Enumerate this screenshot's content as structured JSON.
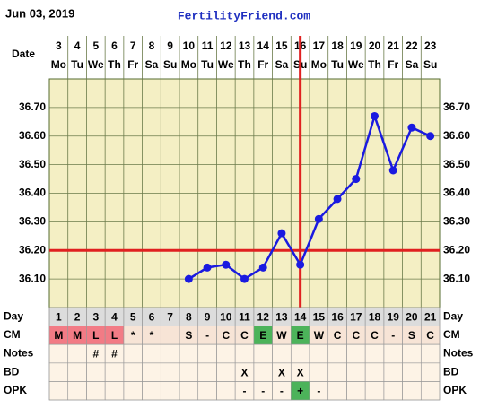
{
  "header": {
    "date": "Jun 03, 2019",
    "site": "FertilityFriend.com"
  },
  "chart_data": {
    "type": "line",
    "x_label": "Date",
    "categories": [
      "3",
      "4",
      "5",
      "6",
      "7",
      "8",
      "9",
      "10",
      "11",
      "12",
      "13",
      "14",
      "15",
      "16",
      "17",
      "18",
      "19",
      "20",
      "21",
      "22",
      "23"
    ],
    "weekdays": [
      "Mo",
      "Tu",
      "We",
      "Th",
      "Fr",
      "Sa",
      "Su",
      "Mo",
      "Tu",
      "We",
      "Th",
      "Fr",
      "Sa",
      "Su",
      "Mo",
      "Tu",
      "We",
      "Th",
      "Fr",
      "Sa",
      "Su"
    ],
    "values": [
      null,
      null,
      null,
      null,
      null,
      null,
      null,
      36.1,
      36.14,
      36.15,
      36.1,
      36.14,
      36.26,
      36.15,
      36.31,
      36.38,
      36.45,
      36.67,
      36.48,
      36.63,
      36.6
    ],
    "color": "#1a1ae0",
    "ylim": [
      36.0,
      36.8
    ],
    "yticks": [
      {
        "value": 36.1,
        "label": "36.10"
      },
      {
        "value": 36.2,
        "label": "36.20"
      },
      {
        "value": 36.3,
        "label": "36.30"
      },
      {
        "value": 36.4,
        "label": "36.40"
      },
      {
        "value": 36.5,
        "label": "36.50"
      },
      {
        "value": 36.6,
        "label": "36.60"
      },
      {
        "value": 36.7,
        "label": "36.70"
      }
    ],
    "coverline": 36.2,
    "ovulation_day": 14,
    "marker_line_color": "#e02020",
    "grid": true
  },
  "table": {
    "highlight_colors": {
      "M": "#f27b85",
      "L": "#f27b85",
      "E": "#4cb35a",
      "+": "#4cb35a"
    },
    "rows": [
      {
        "label": "Day",
        "values": [
          1,
          2,
          3,
          4,
          5,
          6,
          7,
          8,
          9,
          10,
          11,
          12,
          13,
          14,
          15,
          16,
          17,
          18,
          19,
          20,
          21
        ]
      },
      {
        "label": "CM",
        "values": [
          "M",
          "M",
          "L",
          "L",
          "*",
          "*",
          null,
          "S",
          "-",
          "C",
          "C",
          "E",
          "W",
          "E",
          "W",
          "C",
          "C",
          "C",
          "-",
          "S",
          "C"
        ]
      },
      {
        "label": "Notes",
        "values": [
          null,
          null,
          "#",
          "#",
          null,
          null,
          null,
          null,
          null,
          null,
          null,
          null,
          null,
          null,
          null,
          null,
          null,
          null,
          null,
          null,
          null
        ]
      },
      {
        "label": "BD",
        "values": [
          null,
          null,
          null,
          null,
          null,
          null,
          null,
          null,
          null,
          null,
          "X",
          null,
          "X",
          "X",
          null,
          null,
          null,
          null,
          null,
          null,
          null
        ]
      },
      {
        "label": "OPK",
        "values": [
          null,
          null,
          null,
          null,
          null,
          null,
          null,
          null,
          null,
          null,
          "-",
          "-",
          "-",
          "+",
          "-",
          null,
          null,
          null,
          null,
          null,
          null
        ]
      }
    ]
  }
}
